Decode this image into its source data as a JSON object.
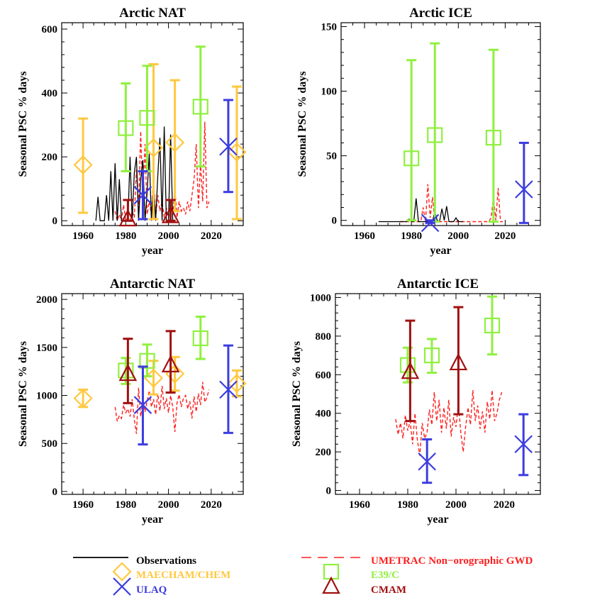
{
  "colors": {
    "observations": "#000000",
    "maecham": "#ffc840",
    "e39c": "#90f040",
    "ulaq": "#3c3ce0",
    "cmam": "#a01010",
    "umetrac": "#ff2020"
  },
  "legend": [
    {
      "key": "obs",
      "label": "Observations",
      "color": "#000000",
      "marker": "line"
    },
    {
      "key": "umetrac",
      "label": "UMETRAC Non−orographic GWD",
      "color": "#ff2020",
      "marker": "dashed-line"
    },
    {
      "key": "maecham",
      "label": "MAECHAM/CHEM",
      "color": "#ffc840",
      "marker": "diamond-icon"
    },
    {
      "key": "e39c",
      "label": "E39/C",
      "color": "#90f040",
      "marker": "square-icon"
    },
    {
      "key": "ulaq",
      "label": "ULAQ",
      "color": "#3c3ce0",
      "marker": "x-icon"
    },
    {
      "key": "cmam",
      "label": "CMAM",
      "color": "#a01010",
      "marker": "triangle-icon"
    }
  ],
  "chart_data": [
    {
      "type": "scatter",
      "title": "Arctic NAT",
      "xlabel": "year",
      "ylabel": "Seasonal PSC % days",
      "xlim": [
        1950,
        2035
      ],
      "ylim": [
        -15,
        620
      ],
      "xticks": [
        1960,
        1980,
        2000,
        2020
      ],
      "yticks": [
        0,
        200,
        400,
        600
      ],
      "observations": [
        [
          1966,
          0
        ],
        [
          1967,
          75
        ],
        [
          1968,
          0
        ],
        [
          1969,
          0
        ],
        [
          1970,
          0
        ],
        [
          1971,
          80
        ],
        [
          1972,
          0
        ],
        [
          1973,
          155
        ],
        [
          1974,
          0
        ],
        [
          1975,
          180
        ],
        [
          1976,
          0
        ],
        [
          1977,
          130
        ],
        [
          1978,
          0
        ],
        [
          1979,
          0
        ],
        [
          1980,
          0
        ],
        [
          1981,
          0
        ],
        [
          1982,
          200
        ],
        [
          1983,
          0
        ],
        [
          1984,
          150
        ],
        [
          1985,
          200
        ],
        [
          1986,
          0
        ],
        [
          1987,
          130
        ],
        [
          1988,
          190
        ],
        [
          1989,
          0
        ],
        [
          1990,
          90
        ],
        [
          1991,
          210
        ],
        [
          1992,
          0
        ],
        [
          1993,
          120
        ],
        [
          1994,
          0
        ],
        [
          1995,
          140
        ],
        [
          1996,
          260
        ],
        [
          1997,
          0
        ],
        [
          1998,
          295
        ],
        [
          1999,
          0
        ],
        [
          2000,
          0
        ],
        [
          2001,
          270
        ],
        [
          2002,
          0
        ]
      ],
      "umetrac": [
        [
          1975,
          30
        ],
        [
          1976,
          0
        ],
        [
          1977,
          20
        ],
        [
          1978,
          0
        ],
        [
          1979,
          50
        ],
        [
          1980,
          0
        ],
        [
          1981,
          10
        ],
        [
          1982,
          0
        ],
        [
          1983,
          30
        ],
        [
          1984,
          10
        ],
        [
          1985,
          160
        ],
        [
          1986,
          40
        ],
        [
          1987,
          280
        ],
        [
          1988,
          60
        ],
        [
          1989,
          240
        ],
        [
          1990,
          20
        ],
        [
          1991,
          60
        ],
        [
          1992,
          20
        ],
        [
          1993,
          130
        ],
        [
          1994,
          10
        ],
        [
          1995,
          80
        ],
        [
          1996,
          30
        ],
        [
          1997,
          60
        ],
        [
          1998,
          10
        ],
        [
          1999,
          40
        ],
        [
          2000,
          10
        ],
        [
          2001,
          60
        ],
        [
          2002,
          20
        ],
        [
          2003,
          100
        ],
        [
          2004,
          10
        ],
        [
          2005,
          60
        ],
        [
          2006,
          30
        ],
        [
          2007,
          40
        ],
        [
          2008,
          20
        ],
        [
          2009,
          60
        ],
        [
          2010,
          30
        ],
        [
          2011,
          80
        ],
        [
          2012,
          130
        ],
        [
          2013,
          240
        ],
        [
          2014,
          40
        ],
        [
          2015,
          180
        ],
        [
          2016,
          60
        ],
        [
          2017,
          310
        ],
        [
          2018,
          40
        ],
        [
          2019,
          60
        ]
      ],
      "series": [
        {
          "model": "maecham",
          "points": [
            {
              "x": 1960,
              "y": 175,
              "lo": 25,
              "hi": 320
            },
            {
              "x": 1993,
              "y": 228,
              "lo": 5,
              "hi": 490
            },
            {
              "x": 2003,
              "y": 245,
              "lo": 30,
              "hi": 440
            },
            {
              "x": 2032,
              "y": 215,
              "lo": 5,
              "hi": 420
            }
          ]
        },
        {
          "model": "e39c",
          "points": [
            {
              "x": 1980,
              "y": 290,
              "lo": 155,
              "hi": 430
            },
            {
              "x": 1990,
              "y": 322,
              "lo": 155,
              "hi": 485
            },
            {
              "x": 2015,
              "y": 357,
              "lo": 170,
              "hi": 545
            }
          ]
        },
        {
          "model": "ulaq",
          "points": [
            {
              "x": 1988,
              "y": 80,
              "lo": 5,
              "hi": 155
            },
            {
              "x": 2028,
              "y": 232,
              "lo": 90,
              "hi": 378
            }
          ]
        },
        {
          "model": "cmam",
          "points": [
            {
              "x": 1981,
              "y": 5,
              "lo": 0,
              "hi": 65
            },
            {
              "x": 2001,
              "y": 15,
              "lo": 0,
              "hi": 65
            }
          ]
        }
      ]
    },
    {
      "type": "scatter",
      "title": "Arctic ICE",
      "xlabel": "year",
      "ylabel": "Seasonal PSC % days",
      "xlim": [
        1950,
        2035
      ],
      "ylim": [
        -4,
        153
      ],
      "xticks": [
        1960,
        1980,
        2000,
        2020
      ],
      "yticks": [
        0,
        50,
        100,
        150
      ],
      "observations": [
        [
          1966,
          -1
        ],
        [
          1970,
          -1
        ],
        [
          1975,
          -1
        ],
        [
          1978,
          -1
        ],
        [
          1979,
          1
        ],
        [
          1980,
          -1
        ],
        [
          1981,
          -1
        ],
        [
          1982,
          17
        ],
        [
          1983,
          -1
        ],
        [
          1984,
          -1
        ],
        [
          1985,
          -1
        ],
        [
          1986,
          -1
        ],
        [
          1987,
          -1
        ],
        [
          1988,
          -1
        ],
        [
          1989,
          -1
        ],
        [
          1990,
          7
        ],
        [
          1991,
          0
        ],
        [
          1992,
          -1
        ],
        [
          1993,
          9
        ],
        [
          1994,
          0
        ],
        [
          1995,
          11
        ],
        [
          1996,
          -1
        ],
        [
          1997,
          -1
        ],
        [
          1998,
          -1
        ],
        [
          1999,
          2
        ],
        [
          2000,
          -1
        ],
        [
          2002,
          -1
        ]
      ],
      "umetrac": [
        [
          1975,
          -1
        ],
        [
          1980,
          -1
        ],
        [
          1984,
          -1
        ],
        [
          1985,
          10
        ],
        [
          1986,
          -1
        ],
        [
          1987,
          28
        ],
        [
          1988,
          2
        ],
        [
          1989,
          18
        ],
        [
          1990,
          -1
        ],
        [
          1995,
          -1
        ],
        [
          2000,
          -1
        ],
        [
          2005,
          -1
        ],
        [
          2010,
          -1
        ],
        [
          2013,
          -1
        ],
        [
          2014,
          2
        ],
        [
          2015,
          18
        ],
        [
          2016,
          0
        ],
        [
          2017,
          25
        ],
        [
          2018,
          -1
        ],
        [
          2019,
          -1
        ]
      ],
      "series": [
        {
          "model": "e39c",
          "points": [
            {
              "x": 1980,
              "y": 48,
              "lo": 0,
              "hi": 124
            },
            {
              "x": 1990,
              "y": 66,
              "lo": -1,
              "hi": 137
            },
            {
              "x": 2015,
              "y": 64,
              "lo": -1,
              "hi": 132
            }
          ]
        },
        {
          "model": "ulaq",
          "points": [
            {
              "x": 1988,
              "y": -2,
              "lo": -2,
              "hi": 0
            },
            {
              "x": 2028,
              "y": 24,
              "lo": -2,
              "hi": 60
            }
          ]
        }
      ]
    },
    {
      "type": "scatter",
      "title": "Antarctic NAT",
      "xlabel": "year",
      "ylabel": "Seasonal PSC % days",
      "xlim": [
        1950,
        2035
      ],
      "ylim": [
        -30,
        2060
      ],
      "xticks": [
        1960,
        1980,
        2000,
        2020
      ],
      "yticks": [
        0,
        500,
        1000,
        1500,
        2000
      ],
      "observations": [],
      "umetrac": [
        [
          1975,
          880
        ],
        [
          1976,
          730
        ],
        [
          1977,
          790
        ],
        [
          1978,
          760
        ],
        [
          1979,
          900
        ],
        [
          1980,
          820
        ],
        [
          1981,
          860
        ],
        [
          1982,
          780
        ],
        [
          1983,
          960
        ],
        [
          1984,
          750
        ],
        [
          1985,
          600
        ],
        [
          1986,
          1080
        ],
        [
          1987,
          780
        ],
        [
          1988,
          960
        ],
        [
          1989,
          830
        ],
        [
          1990,
          940
        ],
        [
          1991,
          1050
        ],
        [
          1992,
          880
        ],
        [
          1993,
          960
        ],
        [
          1994,
          800
        ],
        [
          1995,
          1020
        ],
        [
          1996,
          840
        ],
        [
          1997,
          1100
        ],
        [
          1998,
          860
        ],
        [
          1999,
          970
        ],
        [
          2000,
          820
        ],
        [
          2001,
          1000
        ],
        [
          2002,
          880
        ],
        [
          2003,
          620
        ],
        [
          2004,
          920
        ],
        [
          2005,
          1010
        ],
        [
          2006,
          880
        ],
        [
          2007,
          970
        ],
        [
          2008,
          1000
        ],
        [
          2009,
          860
        ],
        [
          2010,
          940
        ],
        [
          2011,
          760
        ],
        [
          2012,
          990
        ],
        [
          2013,
          830
        ],
        [
          2014,
          1020
        ],
        [
          2015,
          900
        ],
        [
          2016,
          1140
        ],
        [
          2017,
          930
        ],
        [
          2018,
          980
        ],
        [
          2019,
          1060
        ]
      ],
      "series": [
        {
          "model": "maecham",
          "points": [
            {
              "x": 1960,
              "y": 970,
              "lo": 880,
              "hi": 1060
            },
            {
              "x": 1993,
              "y": 1180,
              "lo": 1010,
              "hi": 1360
            },
            {
              "x": 2003,
              "y": 1225,
              "lo": 1050,
              "hi": 1400
            },
            {
              "x": 2032,
              "y": 1125,
              "lo": 990,
              "hi": 1260
            }
          ]
        },
        {
          "model": "e39c",
          "points": [
            {
              "x": 1980,
              "y": 1260,
              "lo": 1120,
              "hi": 1390
            },
            {
              "x": 1990,
              "y": 1360,
              "lo": 1200,
              "hi": 1530
            },
            {
              "x": 2015,
              "y": 1595,
              "lo": 1380,
              "hi": 1820
            }
          ]
        },
        {
          "model": "ulaq",
          "points": [
            {
              "x": 1988,
              "y": 900,
              "lo": 490,
              "hi": 1300
            },
            {
              "x": 2028,
              "y": 1060,
              "lo": 610,
              "hi": 1520
            }
          ]
        },
        {
          "model": "cmam",
          "points": [
            {
              "x": 1981,
              "y": 1225,
              "lo": 920,
              "hi": 1590
            },
            {
              "x": 2001,
              "y": 1315,
              "lo": 1030,
              "hi": 1670
            }
          ]
        }
      ]
    },
    {
      "type": "scatter",
      "title": "Antarctic ICE",
      "xlabel": "year",
      "ylabel": "Seasonal PSC % days",
      "xlim": [
        1950,
        2035
      ],
      "ylim": [
        -20,
        1020
      ],
      "xticks": [
        1960,
        1980,
        2000,
        2020
      ],
      "yticks": [
        0,
        200,
        400,
        600,
        800,
        1000
      ],
      "observations": [],
      "umetrac": [
        [
          1975,
          370
        ],
        [
          1976,
          290
        ],
        [
          1977,
          350
        ],
        [
          1978,
          270
        ],
        [
          1979,
          390
        ],
        [
          1980,
          310
        ],
        [
          1981,
          360
        ],
        [
          1982,
          240
        ],
        [
          1983,
          400
        ],
        [
          1984,
          260
        ],
        [
          1985,
          180
        ],
        [
          1986,
          350
        ],
        [
          1987,
          270
        ],
        [
          1988,
          300
        ],
        [
          1989,
          420
        ],
        [
          1990,
          340
        ],
        [
          1991,
          510
        ],
        [
          1992,
          360
        ],
        [
          1993,
          470
        ],
        [
          1994,
          300
        ],
        [
          1995,
          430
        ],
        [
          1996,
          320
        ],
        [
          1997,
          470
        ],
        [
          1998,
          280
        ],
        [
          1999,
          380
        ],
        [
          2000,
          330
        ],
        [
          2001,
          450
        ],
        [
          2002,
          300
        ],
        [
          2003,
          200
        ],
        [
          2004,
          330
        ],
        [
          2005,
          430
        ],
        [
          2006,
          340
        ],
        [
          2007,
          520
        ],
        [
          2008,
          360
        ],
        [
          2009,
          440
        ],
        [
          2010,
          320
        ],
        [
          2011,
          410
        ],
        [
          2012,
          300
        ],
        [
          2013,
          460
        ],
        [
          2014,
          370
        ],
        [
          2015,
          520
        ],
        [
          2016,
          360
        ],
        [
          2017,
          400
        ],
        [
          2018,
          470
        ],
        [
          2019,
          510
        ]
      ],
      "series": [
        {
          "model": "e39c",
          "points": [
            {
              "x": 1980,
              "y": 650,
              "lo": 560,
              "hi": 740
            },
            {
              "x": 1990,
              "y": 700,
              "lo": 610,
              "hi": 785
            },
            {
              "x": 2015,
              "y": 855,
              "lo": 705,
              "hi": 1005
            }
          ]
        },
        {
          "model": "ulaq",
          "points": [
            {
              "x": 1988,
              "y": 150,
              "lo": 40,
              "hi": 265
            },
            {
              "x": 2028,
              "y": 240,
              "lo": 80,
              "hi": 395
            }
          ]
        },
        {
          "model": "cmam",
          "points": [
            {
              "x": 1981,
              "y": 615,
              "lo": 360,
              "hi": 880
            },
            {
              "x": 2001,
              "y": 660,
              "lo": 395,
              "hi": 950
            }
          ]
        }
      ]
    }
  ]
}
